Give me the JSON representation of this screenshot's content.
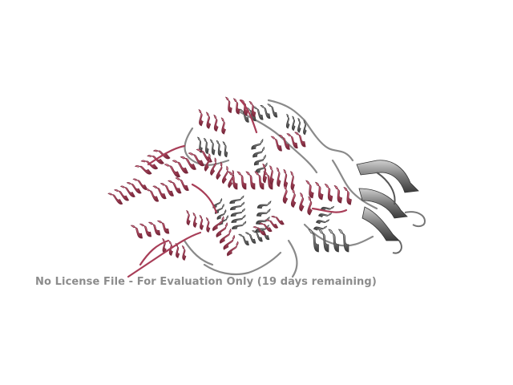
{
  "render": {
    "watermark_text": "No License File - For Evaluation Only (19 days remaining)",
    "background_color": "#ffffff",
    "watermark_color": "#8c8c8c"
  },
  "structure": {
    "chain_a_color": "#b44a62",
    "chain_a_shadow": "#7a2a3e",
    "chain_a_highlight": "#e68aa0",
    "chain_b_color": "#7a7a7a",
    "chain_b_shadow": "#3f3f3f",
    "chain_b_highlight": "#c8c8c8",
    "icon": "protein-cartoon-icon"
  }
}
